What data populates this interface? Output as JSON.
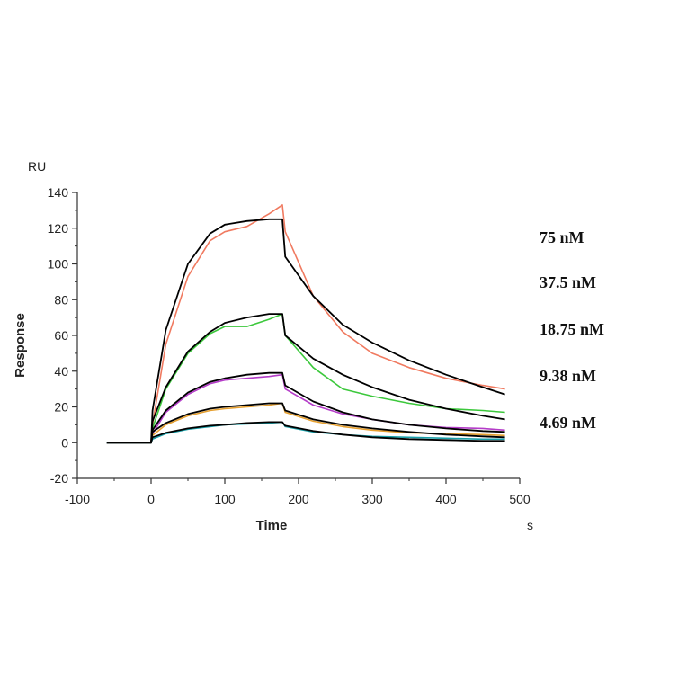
{
  "chart_data": {
    "type": "line",
    "xlabel": "Time",
    "ylabel": "Response",
    "x_unit": "s",
    "y_unit": "RU",
    "xlim": [
      -100,
      500
    ],
    "ylim": [
      -20,
      140
    ],
    "x_ticks": [
      -100,
      0,
      100,
      200,
      300,
      400,
      500
    ],
    "y_ticks": [
      -20,
      0,
      20,
      40,
      60,
      80,
      100,
      120,
      140
    ],
    "grid": false,
    "concentration_labels": [
      "75 nM",
      "37.5 nM",
      "18.75 nM",
      "9.38 nM",
      "4.69 nM"
    ],
    "series": [
      {
        "color": "#f07a60",
        "x": [
          -60,
          0,
          2,
          20,
          50,
          80,
          100,
          130,
          160,
          178,
          182,
          220,
          260,
          300,
          350,
          400,
          450,
          480
        ],
        "y": [
          0,
          0,
          10,
          55,
          93,
          113,
          118,
          121,
          128,
          133,
          118,
          82,
          62,
          50,
          42,
          36,
          32,
          30
        ]
      },
      {
        "color": "#000000",
        "x": [
          -60,
          0,
          2,
          20,
          50,
          80,
          100,
          130,
          160,
          178,
          182,
          220,
          260,
          300,
          350,
          400,
          450,
          480
        ],
        "y": [
          0,
          0,
          18,
          63,
          100,
          117,
          122,
          124,
          125,
          125,
          104,
          82,
          66,
          56,
          46,
          38,
          31,
          27
        ]
      },
      {
        "color": "#3cc83c",
        "x": [
          -60,
          0,
          2,
          20,
          50,
          80,
          100,
          130,
          160,
          178,
          182,
          220,
          260,
          300,
          350,
          400,
          450,
          480
        ],
        "y": [
          0,
          0,
          8,
          30,
          50,
          61,
          65,
          65,
          69,
          72,
          60,
          42,
          30,
          26,
          22,
          19,
          18,
          17
        ]
      },
      {
        "color": "#000000",
        "x": [
          -60,
          0,
          2,
          20,
          50,
          80,
          100,
          130,
          160,
          178,
          182,
          220,
          260,
          300,
          350,
          400,
          450,
          480
        ],
        "y": [
          0,
          0,
          12,
          31,
          51,
          62,
          67,
          70,
          72,
          72,
          60,
          47,
          38,
          31,
          24,
          19,
          15,
          13
        ]
      },
      {
        "color": "#b43cc8",
        "x": [
          -60,
          0,
          2,
          20,
          50,
          80,
          100,
          130,
          160,
          178,
          182,
          220,
          260,
          300,
          350,
          400,
          450,
          480
        ],
        "y": [
          0,
          0,
          5,
          17,
          27,
          33,
          35,
          36,
          37,
          38,
          30,
          21,
          16,
          13,
          10,
          8.5,
          8,
          7
        ]
      },
      {
        "color": "#000000",
        "x": [
          -60,
          0,
          2,
          20,
          50,
          80,
          100,
          130,
          160,
          178,
          182,
          220,
          260,
          300,
          350,
          400,
          450,
          480
        ],
        "y": [
          0,
          0,
          7,
          18,
          28,
          34,
          36,
          38,
          39,
          39,
          32,
          23,
          17,
          13,
          10,
          8,
          6.5,
          6
        ]
      },
      {
        "color": "#e6a030",
        "x": [
          -60,
          0,
          2,
          20,
          50,
          80,
          100,
          130,
          160,
          178,
          182,
          220,
          260,
          300,
          350,
          400,
          450,
          480
        ],
        "y": [
          0,
          0,
          4,
          10,
          15,
          18,
          19,
          20,
          21,
          22,
          17,
          12,
          9,
          7,
          5.5,
          5,
          4.5,
          4
        ]
      },
      {
        "color": "#000000",
        "x": [
          -60,
          0,
          2,
          20,
          50,
          80,
          100,
          130,
          160,
          178,
          182,
          220,
          260,
          300,
          350,
          400,
          450,
          480
        ],
        "y": [
          0,
          0,
          6,
          11,
          16,
          19,
          20,
          21,
          22,
          22,
          18,
          13,
          10,
          8,
          6,
          4.5,
          3.5,
          3
        ]
      },
      {
        "color": "#1a9fa8",
        "x": [
          -60,
          0,
          2,
          20,
          50,
          80,
          100,
          130,
          160,
          178,
          182,
          220,
          260,
          300,
          350,
          400,
          450,
          480
        ],
        "y": [
          0,
          0,
          2,
          5,
          7.5,
          9,
          10,
          10.5,
          11,
          11.5,
          9,
          6,
          4.5,
          3.5,
          3,
          2.5,
          2,
          2
        ]
      },
      {
        "color": "#000000",
        "x": [
          -60,
          0,
          2,
          20,
          50,
          80,
          100,
          130,
          160,
          178,
          182,
          220,
          260,
          300,
          350,
          400,
          450,
          480
        ],
        "y": [
          0,
          0,
          3,
          5.5,
          8,
          9.5,
          10,
          11,
          11.5,
          11.5,
          9.5,
          6.5,
          4.5,
          3,
          2,
          1.5,
          1,
          1
        ]
      }
    ]
  }
}
